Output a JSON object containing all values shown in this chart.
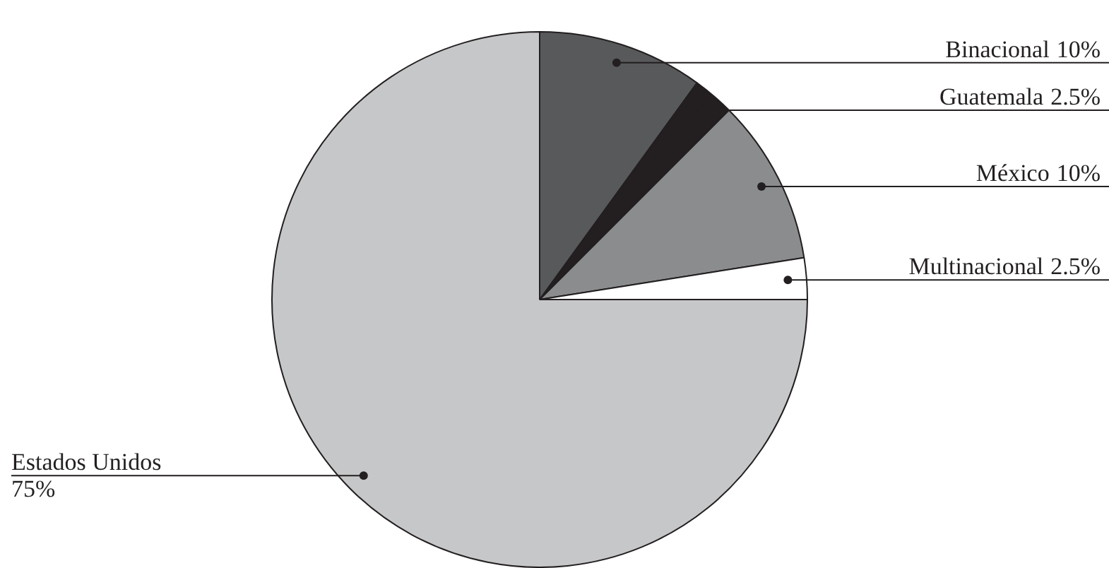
{
  "chart_data": {
    "type": "pie",
    "categories": [
      "Binacional",
      "Guatemala",
      "México",
      "Multinacional",
      "Estados Unidos"
    ],
    "values": [
      10,
      2.5,
      10,
      2.5,
      75
    ],
    "colors": [
      "#58595b",
      "#231f20",
      "#8a8c8e",
      "#ffffff",
      "#c6c7c8"
    ],
    "value_labels": [
      "10%",
      "2.5%",
      "10%",
      "2.5%",
      "75%"
    ],
    "legend": false
  }
}
